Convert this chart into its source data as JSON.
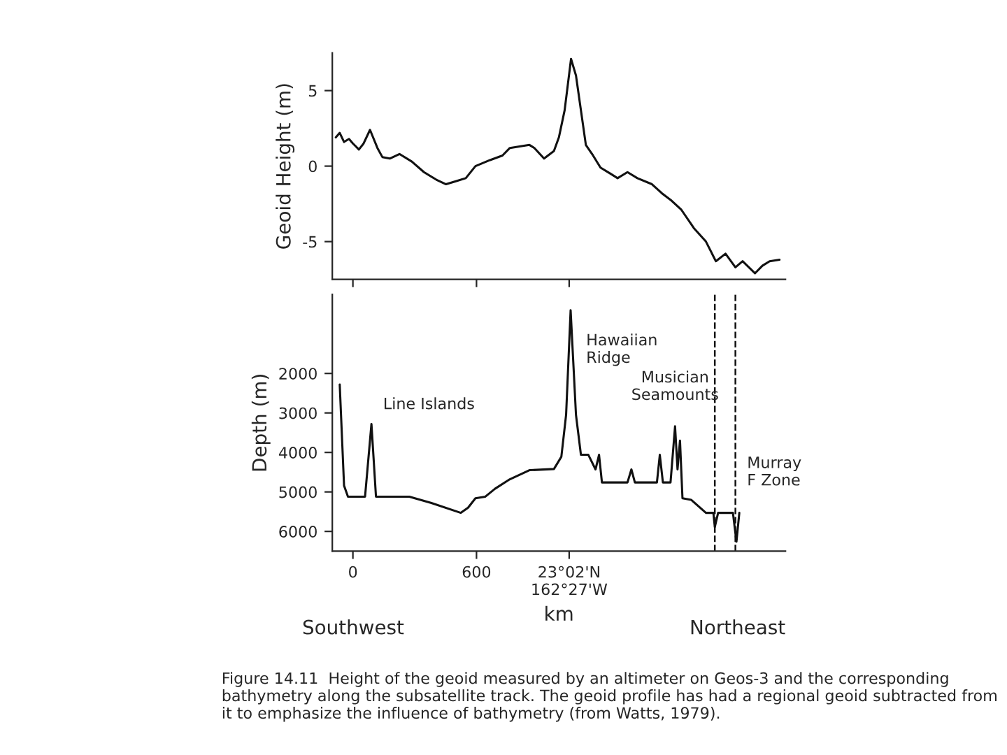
{
  "chart_data": [
    {
      "type": "line",
      "ylabel": "Geoid Height (m)",
      "xlim": [
        -100,
        2100
      ],
      "xticks": [
        {
          "value": 0,
          "label": null
        },
        {
          "value": 600,
          "label": null
        },
        {
          "value": 1050,
          "label": null
        }
      ],
      "ylim": [
        -7.5,
        7.5
      ],
      "yticks": [
        -5,
        0,
        5
      ],
      "tick_labels": "y",
      "grid": false,
      "legend": false,
      "series": [
        {
          "color": "#111111",
          "x": [
            -83,
            -64,
            -43,
            -19,
            0,
            29,
            52,
            83,
            119,
            143,
            179,
            226,
            286,
            345,
            405,
            452,
            500,
            548,
            595,
            666,
            726,
            762,
            809,
            857,
            881,
            928,
            976,
            1000,
            1028,
            1059,
            1083,
            1107,
            1131,
            1166,
            1202,
            1250,
            1285,
            1333,
            1381,
            1452,
            1500,
            1548,
            1595,
            1655,
            1714,
            1762,
            1809,
            1857,
            1892,
            1952,
            1988,
            2023,
            2071
          ],
          "values": [
            1.9,
            2.2,
            1.6,
            1.8,
            1.5,
            1.1,
            1.5,
            2.4,
            1.2,
            0.6,
            0.5,
            0.8,
            0.3,
            -0.4,
            -0.9,
            -1.2,
            -1.0,
            -0.8,
            0.0,
            0.4,
            0.7,
            1.2,
            1.3,
            1.4,
            1.2,
            0.5,
            1.0,
            1.9,
            3.7,
            7.1,
            6.0,
            3.7,
            1.4,
            0.7,
            -0.1,
            -0.5,
            -0.8,
            -0.4,
            -0.8,
            -1.2,
            -1.8,
            -2.3,
            -2.9,
            -4.1,
            -5.0,
            -6.3,
            -5.8,
            -6.7,
            -6.3,
            -7.1,
            -6.6,
            -6.3,
            -6.2
          ]
        }
      ]
    },
    {
      "type": "line",
      "ylabel": "Depth (m)",
      "xlabel": "km",
      "xlim": [
        -100,
        2100
      ],
      "ylim": [
        6500,
        0
      ],
      "yticks": [
        2000,
        3000,
        4000,
        5000,
        6000
      ],
      "xticks": [
        0,
        600,
        {
          "value": 1050,
          "label": "23°02'N\n162°27'W"
        }
      ],
      "grid": false,
      "legend": false,
      "series": [
        {
          "color": "#111111",
          "x": [
            -64,
            -43,
            -24,
            59,
            90,
            112,
            274,
            381,
            524,
            559,
            595,
            643,
            690,
            762,
            857,
            976,
            1012,
            1035,
            1057,
            1083,
            1107,
            1143,
            1178,
            1195,
            1209,
            1333,
            1352,
            1369,
            1476,
            1490,
            1505,
            1542,
            1564,
            1576,
            1588,
            1600,
            1642,
            1714,
            1750,
            1757,
            1773,
            1845,
            1862,
            1876
          ],
          "values": [
            2280,
            4840,
            5120,
            5120,
            3280,
            5120,
            5120,
            5280,
            5530,
            5400,
            5160,
            5120,
            4920,
            4680,
            4450,
            4420,
            4110,
            3050,
            400,
            3050,
            4060,
            4060,
            4430,
            4060,
            4760,
            4760,
            4430,
            4760,
            4760,
            4060,
            4760,
            4760,
            3340,
            4430,
            3700,
            5160,
            5200,
            5530,
            5530,
            5890,
            5530,
            5530,
            6260,
            5530
          ]
        }
      ],
      "ref_lines": [
        {
          "axis": "x",
          "value": 1757,
          "line_style": "dashed",
          "color": "#111111"
        },
        {
          "axis": "x",
          "value": 1857,
          "line_style": "dashed",
          "color": "#111111"
        }
      ],
      "annotations": [
        {
          "text": "Line Islands",
          "x": 90,
          "y": 3280
        },
        {
          "text": "Hawaiian\nRidge",
          "x": 1057,
          "y": 400
        },
        {
          "text": "Musician\nSeamounts",
          "x": 1564,
          "y": 3340
        },
        {
          "text": "Murray\nF Zone",
          "x": 1857,
          "y": 3800
        },
        "Southwest",
        "Northeast",
        "Figure 14.11  Height of the geoid measured by an altimeter on Geos-3 and the corresponding bathymetry along the subsatellite track. The geoid profile has had a regional geoid subtracted from it to emphasize the influence of bathymetry (from Watts, 1979)."
      ]
    }
  ]
}
